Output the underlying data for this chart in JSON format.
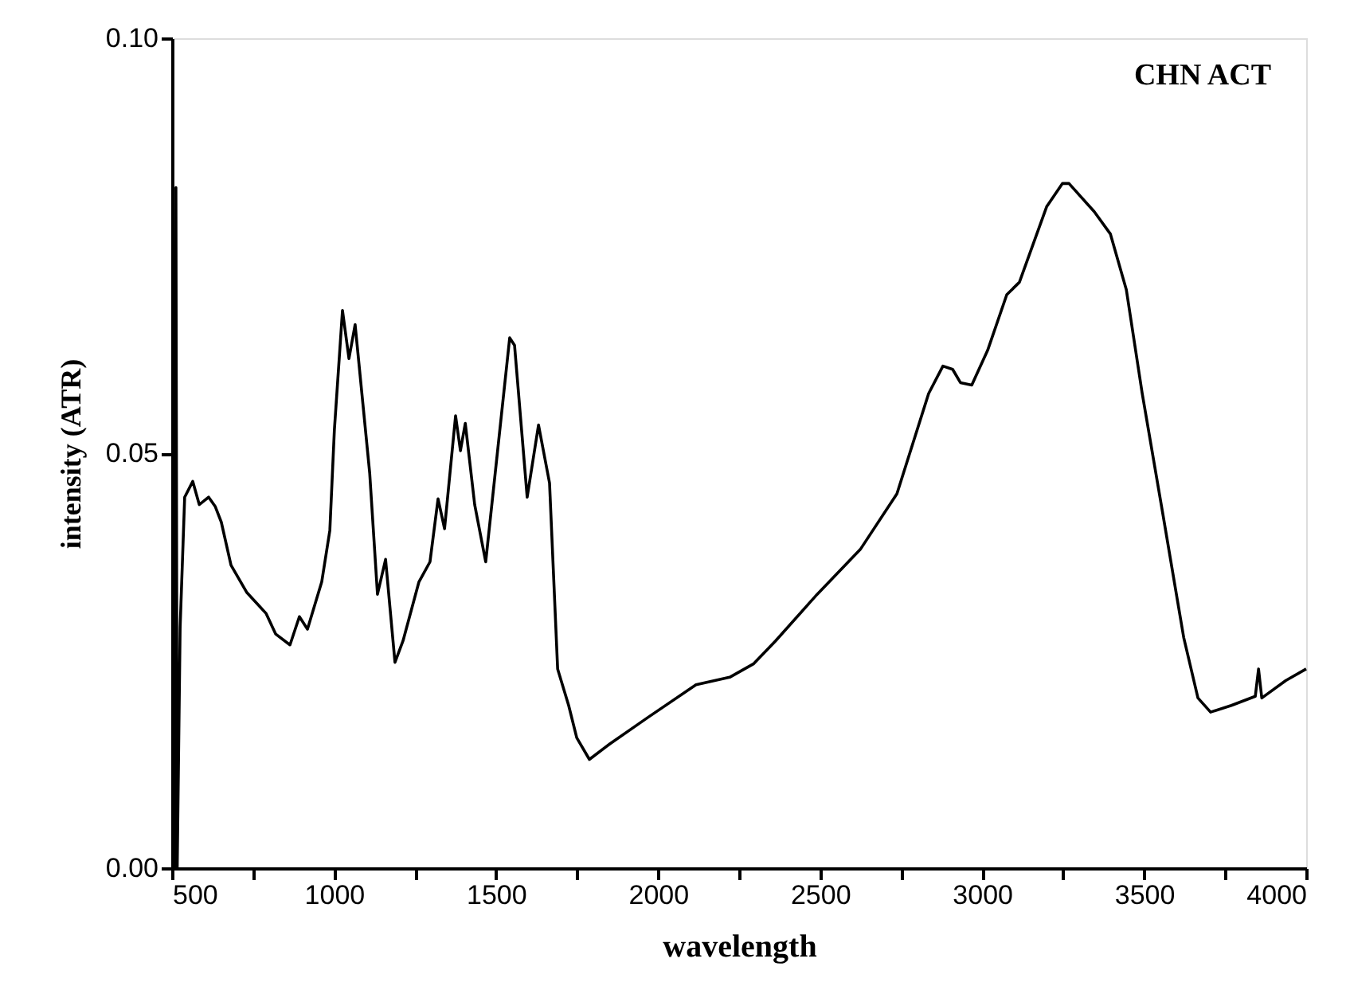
{
  "chart_data": {
    "type": "line",
    "xlabel": "wavelength",
    "ylabel": "intensity (ATR)",
    "annotations": [
      "CHN ACT"
    ],
    "x": [
      510,
      512,
      516,
      525,
      539,
      564,
      584,
      613,
      633,
      652,
      682,
      731,
      790,
      820,
      864,
      893,
      918,
      962,
      987,
      1001,
      1026,
      1046,
      1065,
      1110,
      1134,
      1159,
      1188,
      1213,
      1262,
      1296,
      1321,
      1341,
      1375,
      1390,
      1405,
      1434,
      1468,
      1542,
      1557,
      1596,
      1631,
      1665,
      1690,
      1724,
      1749,
      1788,
      1852,
      1970,
      2117,
      2221,
      2294,
      2363,
      2491,
      2624,
      2737,
      2835,
      2879,
      2909,
      2933,
      2968,
      3017,
      3076,
      3115,
      3199,
      3248,
      3268,
      3346,
      3396,
      3445,
      3494,
      3558,
      3622,
      3666,
      3705,
      3769,
      3843,
      3853,
      3863,
      3937,
      4000
    ],
    "series": [
      {
        "color": "#000000",
        "values": [
          0.0,
          0.082,
          0.0,
          0.029,
          0.0447,
          0.0466,
          0.0438,
          0.0447,
          0.0436,
          0.0417,
          0.0365,
          0.0332,
          0.0307,
          0.0282,
          0.0269,
          0.0303,
          0.0288,
          0.0345,
          0.0407,
          0.0528,
          0.0672,
          0.0614,
          0.0655,
          0.0476,
          0.033,
          0.0372,
          0.0248,
          0.0274,
          0.0345,
          0.0369,
          0.0445,
          0.0409,
          0.0545,
          0.0503,
          0.0536,
          0.0438,
          0.0369,
          0.0639,
          0.063,
          0.0447,
          0.0534,
          0.0464,
          0.024,
          0.0196,
          0.0157,
          0.0131,
          0.015,
          0.0182,
          0.0221,
          0.023,
          0.0246,
          0.0274,
          0.033,
          0.0384,
          0.0451,
          0.0572,
          0.0605,
          0.0601,
          0.0585,
          0.0582,
          0.0624,
          0.0691,
          0.0706,
          0.0797,
          0.0825,
          0.0825,
          0.0791,
          0.0764,
          0.0697,
          0.0572,
          0.0426,
          0.0278,
          0.0205,
          0.0188,
          0.0196,
          0.0207,
          0.024,
          0.0205,
          0.0226,
          0.024
        ]
      }
    ],
    "xlim": [
      500,
      4000
    ],
    "xticks": [
      500,
      {
        "value": 750,
        "label": null
      },
      1000,
      {
        "value": 1250,
        "label": null
      },
      1500,
      {
        "value": 1750,
        "label": null
      },
      2000,
      {
        "value": 2250,
        "label": null
      },
      2500,
      {
        "value": 2750,
        "label": null
      },
      3000,
      {
        "value": 3250,
        "label": null
      },
      3500,
      {
        "value": 3750,
        "label": null
      },
      4000
    ],
    "ylim": [
      0.0,
      0.1
    ],
    "yticks": [
      {
        "value": 0.0,
        "label": "0.00"
      },
      {
        "value": 0.05,
        "label": "0.05"
      },
      {
        "value": 0.1,
        "label": "0.10"
      }
    ],
    "grid": false,
    "marker": "none",
    "line_style": "solid"
  }
}
